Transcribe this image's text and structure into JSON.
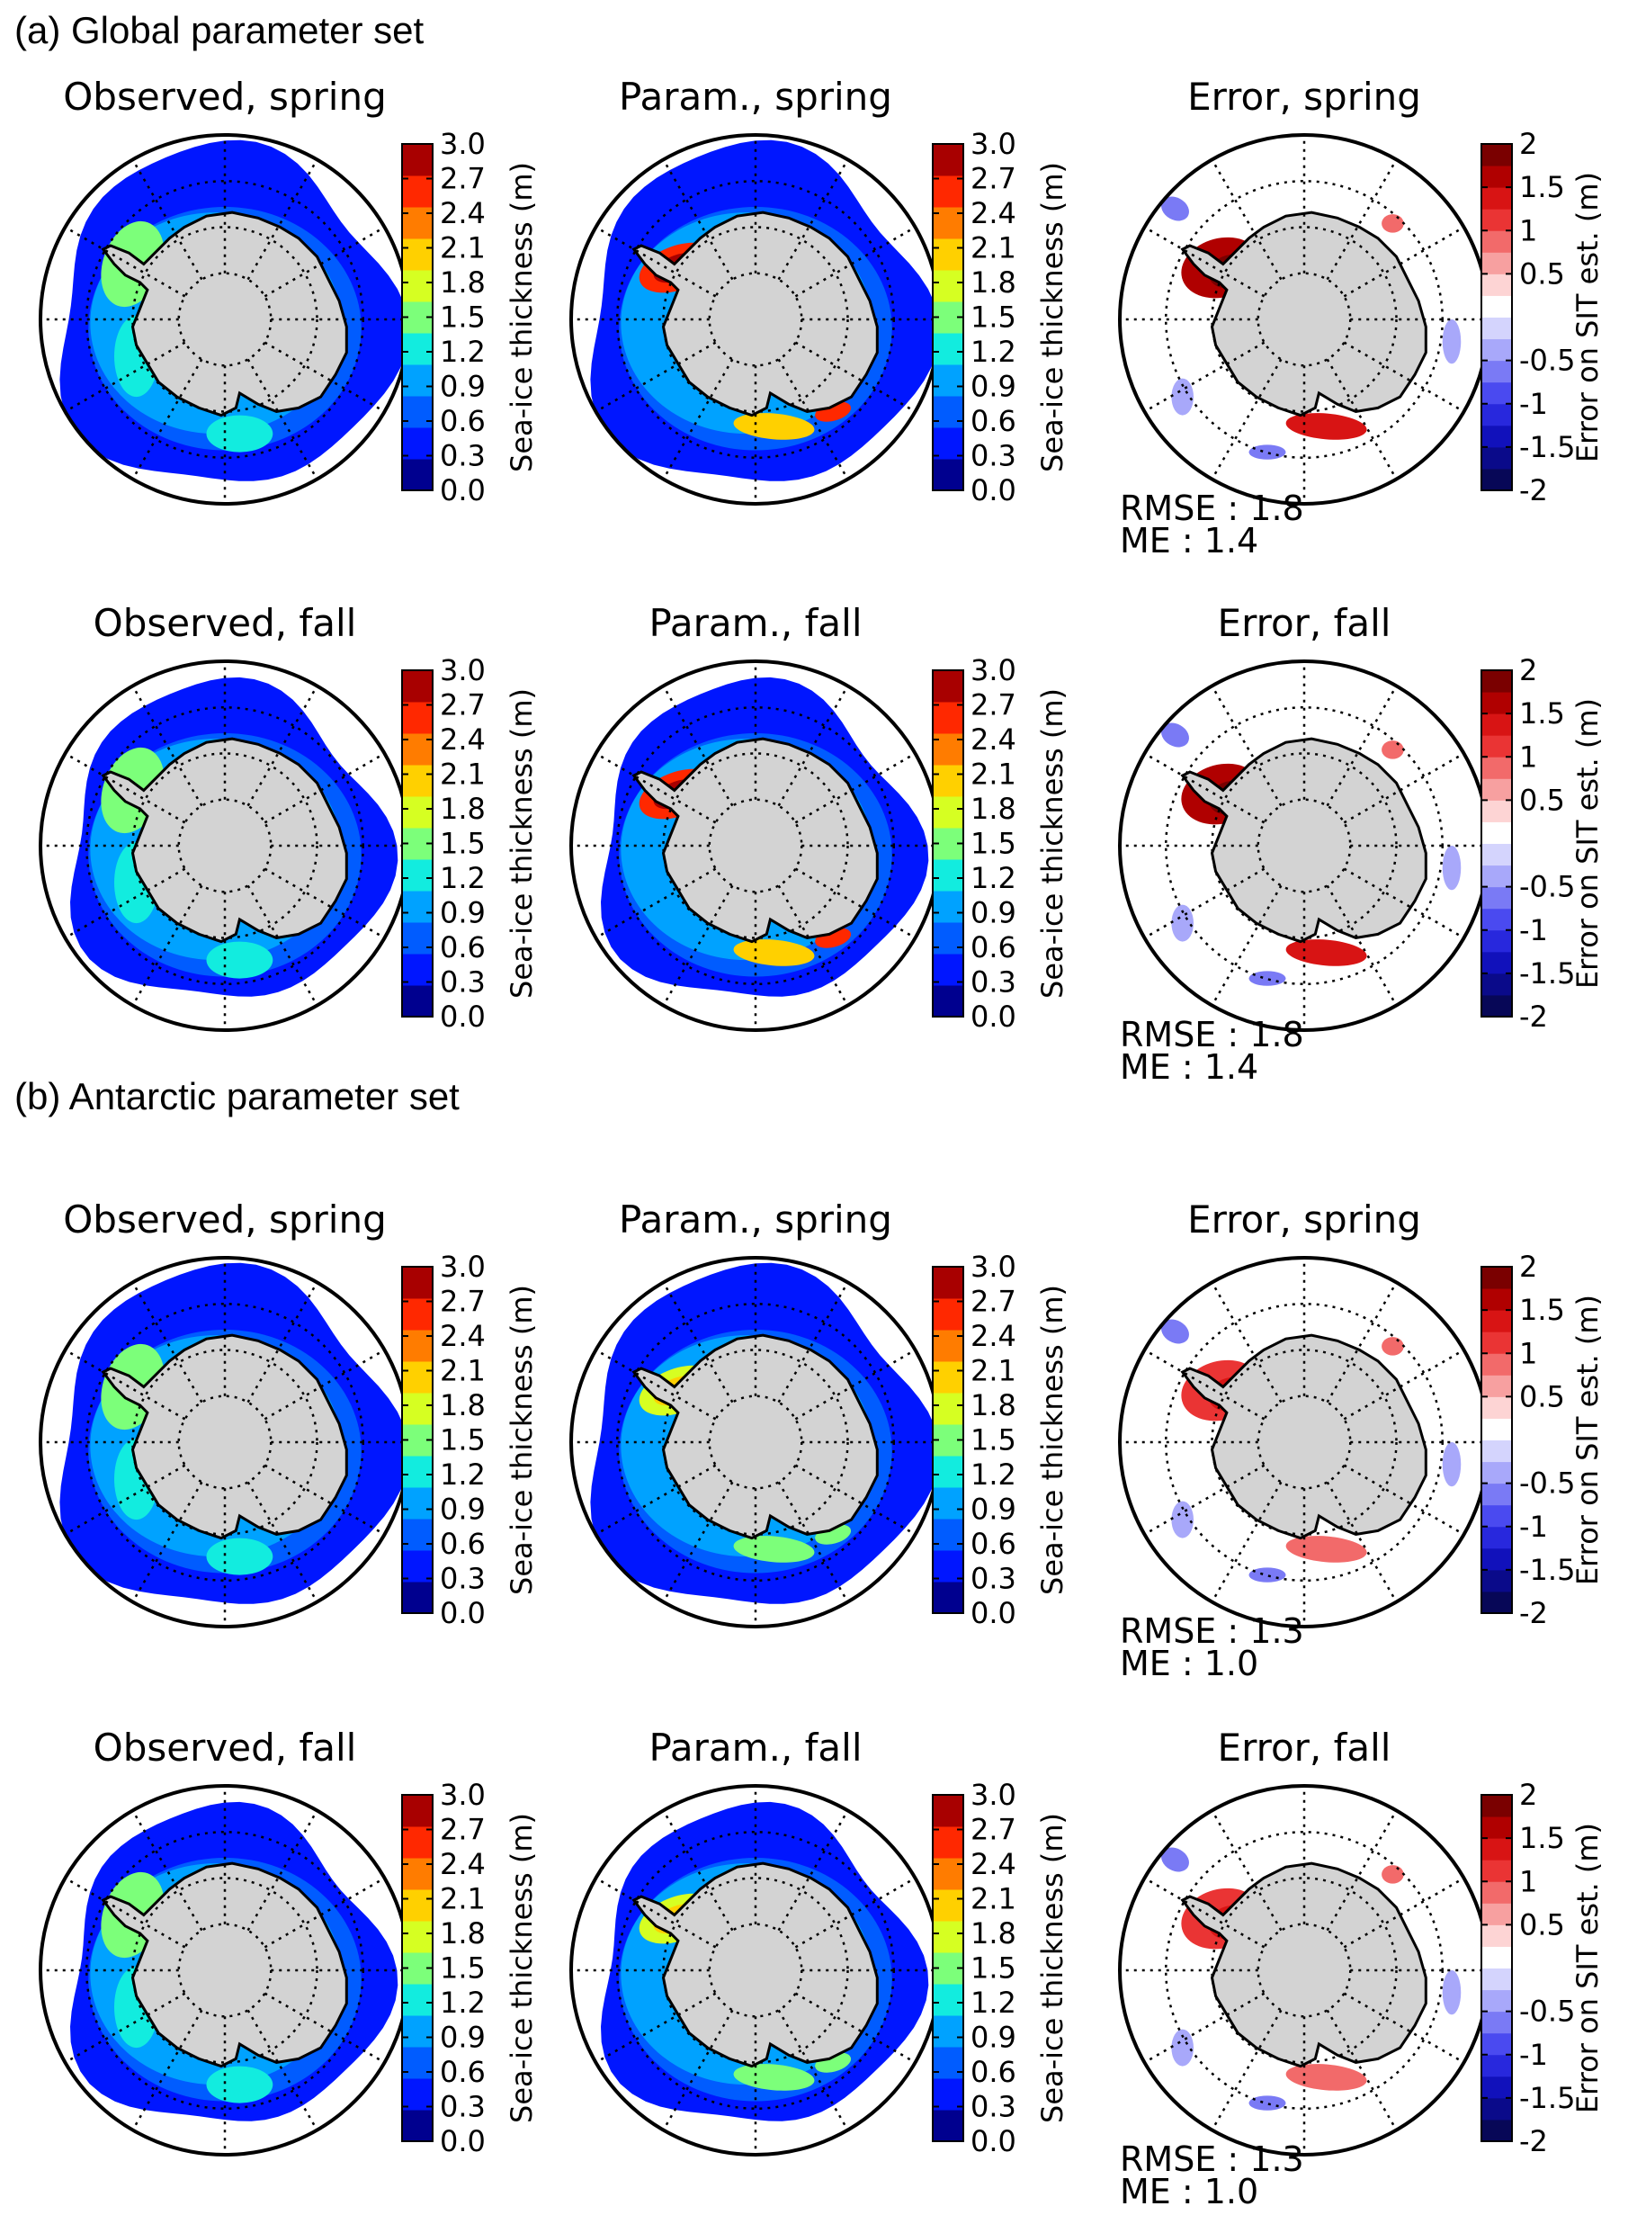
{
  "figure": {
    "sections": [
      {
        "title": "(a) Global parameter set",
        "rows": [
          {
            "season": "spring",
            "panels": [
              {
                "kind": "thickness",
                "title": "Observed, spring",
                "variant": "obs_spring_a"
              },
              {
                "kind": "thickness",
                "title": "Param., spring",
                "variant": "par_spring_a"
              },
              {
                "kind": "error",
                "title": "Error, spring",
                "variant": "err_spring_a",
                "stats": [
                  "RMSE : 1.8",
                  "ME : 1.4"
                ]
              }
            ]
          },
          {
            "season": "fall",
            "panels": [
              {
                "kind": "thickness",
                "title": "Observed, fall",
                "variant": "obs_fall_a"
              },
              {
                "kind": "thickness",
                "title": "Param., fall",
                "variant": "par_fall_a"
              },
              {
                "kind": "error",
                "title": "Error, fall",
                "variant": "err_fall_a",
                "stats": [
                  "RMSE : 1.8",
                  "ME : 1.4"
                ]
              }
            ]
          }
        ]
      },
      {
        "title": "(b) Antarctic parameter set",
        "rows": [
          {
            "season": "spring",
            "panels": [
              {
                "kind": "thickness",
                "title": "Observed, spring",
                "variant": "obs_spring_b"
              },
              {
                "kind": "thickness",
                "title": "Param., spring",
                "variant": "par_spring_b"
              },
              {
                "kind": "error",
                "title": "Error, spring",
                "variant": "err_spring_b",
                "stats": [
                  "RMSE : 1.3",
                  "ME : 1.0"
                ]
              }
            ]
          },
          {
            "season": "fall",
            "panels": [
              {
                "kind": "thickness",
                "title": "Observed, fall",
                "variant": "obs_fall_b"
              },
              {
                "kind": "thickness",
                "title": "Param., fall",
                "variant": "par_fall_b"
              },
              {
                "kind": "error",
                "title": "Error, fall",
                "variant": "err_fall_b",
                "stats": [
                  "RMSE : 1.3",
                  "ME : 1.0"
                ]
              }
            ]
          }
        ]
      }
    ]
  },
  "colorbars": {
    "thickness": {
      "label": "Sea-ice thickness (m)",
      "ticks": [
        "0.0",
        "0.3",
        "0.6",
        "0.9",
        "1.2",
        "1.5",
        "1.8",
        "2.1",
        "2.4",
        "2.7",
        "3.0"
      ],
      "colors": [
        "#00008f",
        "#0016ff",
        "#005cff",
        "#00a2ff",
        "#12ecdf",
        "#7cff7a",
        "#d6ff22",
        "#ffd000",
        "#ff7c00",
        "#ff2800",
        "#a80000"
      ]
    },
    "error": {
      "label": "Error on SIT est. (m)",
      "ticks": [
        "-2",
        "-1.5",
        "-1",
        "-0.5",
        "0.5",
        "1",
        "1.5",
        "2"
      ],
      "colors": [
        "#070757",
        "#0a0a8a",
        "#1111bb",
        "#2828dd",
        "#4a4af0",
        "#7a7af5",
        "#a8a8fa",
        "#d4d4fd",
        "#ffffff",
        "#fdd4d4",
        "#f7a0a0",
        "#f26a6a",
        "#ea3434",
        "#d81414",
        "#b00000",
        "#7a0000"
      ]
    }
  },
  "map_colors": {
    "land": "#d3d3d3",
    "coast": "#000000"
  }
}
